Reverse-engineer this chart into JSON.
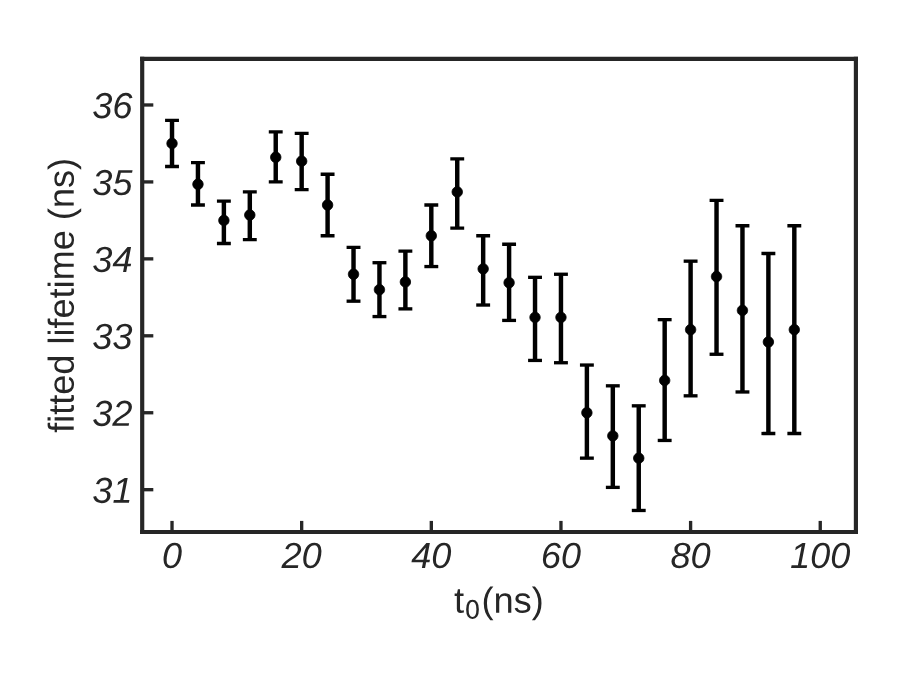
{
  "chart_data": {
    "type": "scatter",
    "xlabel": "t$_{0}$(ns)",
    "ylabel": "fitted lifetime (ns)",
    "x": [
      0,
      4,
      8,
      12,
      16,
      20,
      24,
      28,
      32,
      36,
      40,
      44,
      48,
      52,
      56,
      60,
      64,
      68,
      72,
      76,
      80,
      84,
      88,
      92,
      96
    ],
    "series": [
      {
        "color": "#000000",
        "values": [
          35.5,
          34.97,
          34.5,
          34.57,
          35.32,
          35.27,
          34.7,
          33.8,
          33.6,
          33.7,
          34.3,
          34.87,
          33.87,
          33.69,
          33.24,
          33.24,
          32.0,
          31.7,
          31.41,
          32.42,
          33.08,
          33.77,
          33.33,
          32.92,
          33.08
        ],
        "errors": [
          [
            35.2,
            35.8
          ],
          [
            34.7,
            35.25
          ],
          [
            34.2,
            34.75
          ],
          [
            34.25,
            34.87
          ],
          [
            35.0,
            35.65
          ],
          [
            34.9,
            35.63
          ],
          [
            34.3,
            35.1
          ],
          [
            33.45,
            34.15
          ],
          [
            33.25,
            33.95
          ],
          [
            33.35,
            34.1
          ],
          [
            33.9,
            34.7
          ],
          [
            34.4,
            35.3
          ],
          [
            33.4,
            34.3
          ],
          [
            33.2,
            34.19
          ],
          [
            32.68,
            33.76
          ],
          [
            32.65,
            33.8
          ],
          [
            31.41,
            32.62
          ],
          [
            31.03,
            32.35
          ],
          [
            30.73,
            32.09
          ],
          [
            31.64,
            33.21
          ],
          [
            32.22,
            33.97
          ],
          [
            32.76,
            34.76
          ],
          [
            32.27,
            34.43
          ],
          [
            31.73,
            34.07
          ],
          [
            31.73,
            34.43
          ]
        ]
      }
    ],
    "xlim": [
      -4.6,
      105.5
    ],
    "ylim": [
      30.45,
      36.6
    ],
    "xticks": [
      0,
      20,
      40,
      60,
      80,
      100
    ],
    "yticks": [
      31,
      32,
      33,
      34,
      35,
      36
    ],
    "marker": "circle",
    "grid": false
  }
}
